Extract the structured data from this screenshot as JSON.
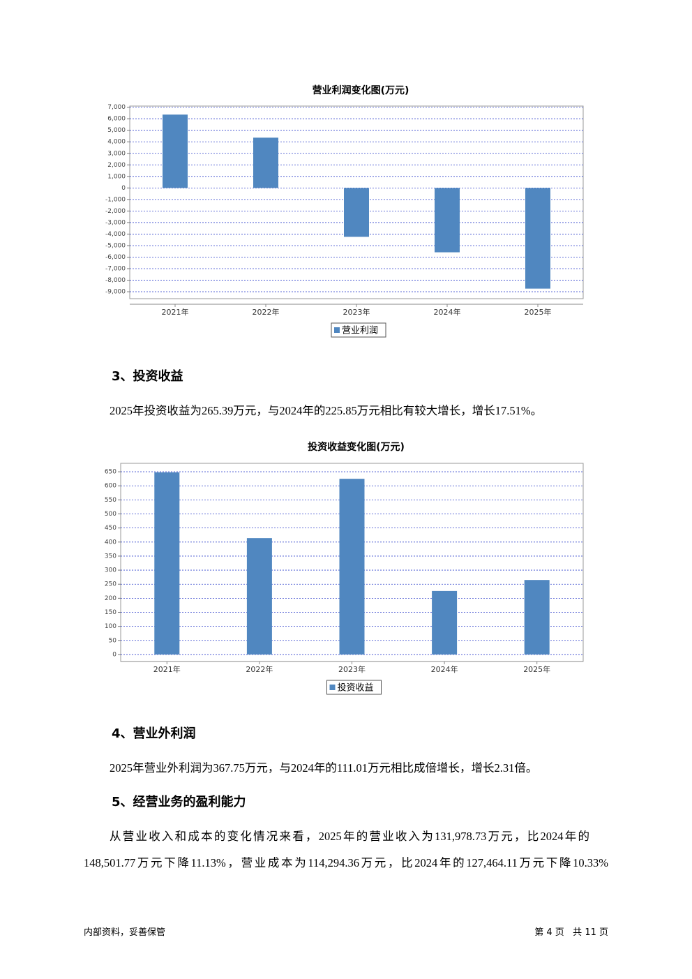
{
  "chart_data": [
    {
      "type": "bar",
      "title": "营业利润变化图(万元)",
      "categories": [
        "2021年",
        "2022年",
        "2023年",
        "2024年",
        "2025年"
      ],
      "series": [
        {
          "name": "营业利润",
          "color": "#5087c0",
          "values": [
            6360,
            4360,
            -4240,
            -5580,
            -8730
          ]
        }
      ],
      "ylim": [
        -9600,
        7100
      ],
      "yticks": [
        {
          "value": 7000,
          "label": "7,000"
        },
        {
          "value": 6000,
          "label": "6,000"
        },
        {
          "value": 5000,
          "label": "5,000"
        },
        {
          "value": 4000,
          "label": "4,000"
        },
        {
          "value": 3000,
          "label": "3,000"
        },
        {
          "value": 2000,
          "label": "2,000"
        },
        {
          "value": 1000,
          "label": "1,000"
        },
        0,
        {
          "value": -1000,
          "label": "-1,000"
        },
        {
          "value": -2000,
          "label": "-2,000"
        },
        {
          "value": -3000,
          "label": "-3,000"
        },
        {
          "value": -4000,
          "label": "-4,000"
        },
        {
          "value": -5000,
          "label": "-5,000"
        },
        {
          "value": -6000,
          "label": "-6,000"
        },
        {
          "value": -7000,
          "label": "-7,000"
        },
        {
          "value": -8000,
          "label": "-8,000"
        },
        {
          "value": -9000,
          "label": "-9,000"
        }
      ],
      "grid": true,
      "legend": "bottom"
    },
    {
      "type": "bar",
      "title": "投资收益变化图(万元)",
      "categories": [
        "2021年",
        "2022年",
        "2023年",
        "2024年",
        "2025年"
      ],
      "series": [
        {
          "name": "投资收益",
          "color": "#5087c0",
          "values": [
            648,
            414,
            625,
            226,
            265
          ]
        }
      ],
      "ylim": [
        -25,
        680
      ],
      "yticks": [
        650,
        600,
        550,
        500,
        450,
        400,
        350,
        300,
        250,
        200,
        150,
        100,
        50,
        0
      ],
      "grid": true,
      "legend": "bottom"
    }
  ],
  "sections": [
    {
      "heading": "3、投资收益",
      "lines": [
        "2025年投资收益为265.39万元，与2024年的225.85万元相比有较大增长，增长17.51%。"
      ]
    },
    {
      "heading": "4、营业外利润",
      "lines": [
        "2025年营业外利润为367.75万元，与2024年的111.01万元相比成倍增长，增长2.31倍。"
      ]
    },
    {
      "heading": "5、经营业务的盈利能力",
      "lines": [
        "从营业收入和成本的变化情况来看，2025年的营业收入为131,978.73万元，比2024年的",
        "148,501.77万元下降11.13%，营业成本为114,294.36万元，比2024年的127,464.11万元下降10.33%"
      ]
    }
  ],
  "footer": {
    "left": "内部资料，妥善保管",
    "right": "第 4 页   共 11 页"
  }
}
